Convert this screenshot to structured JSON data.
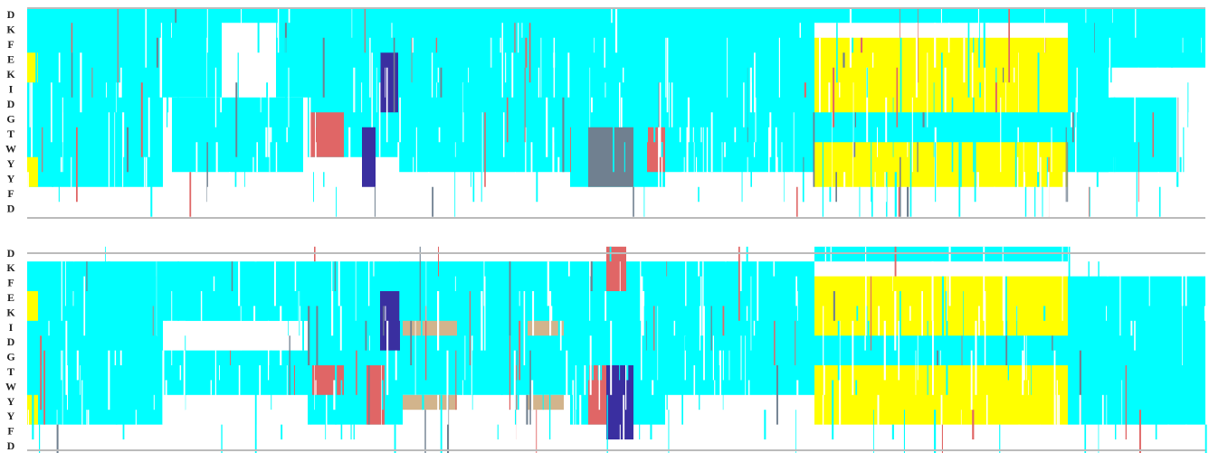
{
  "panels": [
    {
      "row_labels": [
        "D",
        "K",
        "F",
        "E",
        "K",
        "I",
        "D",
        "G",
        "T",
        "W",
        "Y",
        "Y",
        "F",
        "D"
      ]
    },
    {
      "row_labels": [
        "D",
        "K",
        "F",
        "E",
        "K",
        "I",
        "D",
        "G",
        "T",
        "W",
        "Y",
        "Y",
        "F",
        "D"
      ]
    }
  ]
}
